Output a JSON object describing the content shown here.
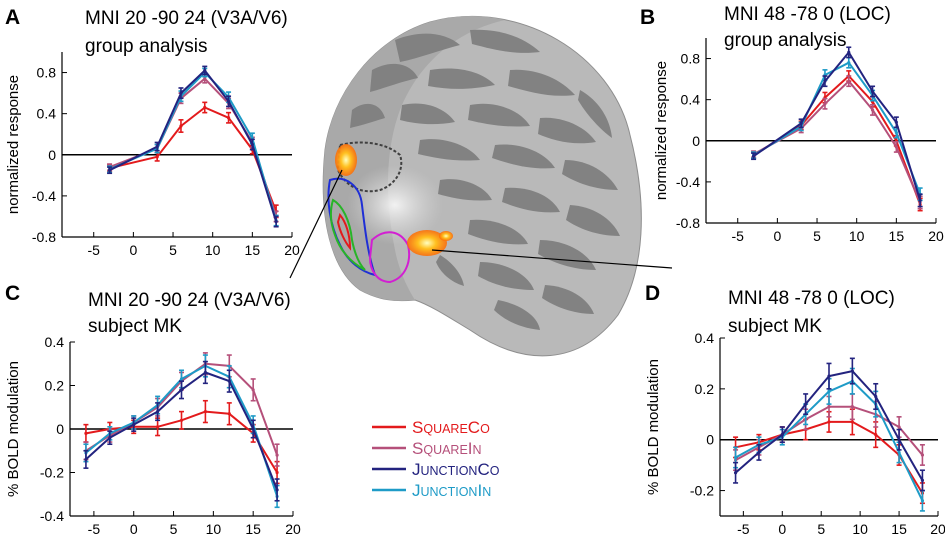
{
  "colors": {
    "SquareCo": "#e31a1c",
    "SquareIn": "#b5507a",
    "JunctionCo": "#23237f",
    "JunctionIn": "#1e9bc7",
    "axis": "#000000"
  },
  "legend": [
    {
      "key": "SquareCo",
      "big1": "S",
      "small1": "QUARE",
      "big2": "C",
      "small2": "O"
    },
    {
      "key": "SquareIn",
      "big1": "S",
      "small1": "QUARE",
      "big2": "I",
      "small2": "N"
    },
    {
      "key": "JunctionCo",
      "big1": "J",
      "small1": "UNCTION",
      "big2": "C",
      "small2": "O"
    },
    {
      "key": "JunctionIn",
      "big1": "J",
      "small1": "UNCTION",
      "big2": "I",
      "small2": "N"
    }
  ],
  "brain": {
    "icon": "inflated-brain-surface"
  },
  "chart_data": [
    {
      "panel": "A",
      "type": "line",
      "title": "MNI 20 -90 24 (V3A/V6)",
      "subtitle": "group analysis",
      "ylabel": "normalized response",
      "xlim": [
        -9,
        20
      ],
      "ylim": [
        -0.8,
        1.0
      ],
      "xticks": [
        -5,
        0,
        5,
        10,
        15,
        20
      ],
      "xtick_labels": [
        "-5",
        "0",
        "5",
        "10",
        "15",
        "20"
      ],
      "yticks": [
        -0.8,
        -0.4,
        0,
        0.4,
        0.8
      ],
      "ytick_labels": [
        "-0.8",
        "-0.4",
        "0",
        "0.4",
        "0.8"
      ],
      "x": [
        -3,
        3,
        6,
        9,
        12,
        15,
        18
      ],
      "series": [
        {
          "name": "SquareCo",
          "values": [
            -0.13,
            -0.02,
            0.28,
            0.46,
            0.36,
            0.05,
            -0.55
          ],
          "err": [
            0.03,
            0.04,
            0.06,
            0.05,
            0.05,
            0.04,
            0.06
          ]
        },
        {
          "name": "SquareIn",
          "values": [
            -0.12,
            0.06,
            0.55,
            0.74,
            0.5,
            0.12,
            -0.6
          ],
          "err": [
            0.03,
            0.04,
            0.05,
            0.04,
            0.05,
            0.05,
            0.05
          ]
        },
        {
          "name": "JunctionCo",
          "values": [
            -0.15,
            0.08,
            0.6,
            0.82,
            0.52,
            0.1,
            -0.65
          ],
          "err": [
            0.03,
            0.04,
            0.05,
            0.04,
            0.05,
            0.05,
            0.05
          ]
        },
        {
          "name": "JunctionIn",
          "values": [
            -0.14,
            0.06,
            0.57,
            0.8,
            0.56,
            0.16,
            -0.64
          ],
          "err": [
            0.03,
            0.04,
            0.05,
            0.04,
            0.05,
            0.05,
            0.05
          ]
        }
      ]
    },
    {
      "panel": "B",
      "type": "line",
      "title": "MNI 48 -78 0 (LOC)",
      "subtitle": "group analysis",
      "ylabel": "normalized response",
      "xlim": [
        -9,
        20
      ],
      "ylim": [
        -0.8,
        1.0
      ],
      "xticks": [
        -5,
        0,
        5,
        10,
        15,
        20
      ],
      "xtick_labels": [
        "-5",
        "0",
        "5",
        "10",
        "15",
        "20"
      ],
      "yticks": [
        -0.8,
        -0.4,
        0,
        0.4,
        0.8
      ],
      "ytick_labels": [
        "-0.8",
        "-0.4",
        "0",
        "0.4",
        "0.8"
      ],
      "x": [
        -3,
        3,
        6,
        9,
        12,
        15,
        18
      ],
      "series": [
        {
          "name": "SquareCo",
          "values": [
            -0.14,
            0.15,
            0.42,
            0.63,
            0.38,
            0.0,
            -0.62
          ],
          "err": [
            0.03,
            0.04,
            0.05,
            0.05,
            0.05,
            0.05,
            0.06
          ]
        },
        {
          "name": "SquareIn",
          "values": [
            -0.13,
            0.12,
            0.36,
            0.58,
            0.3,
            -0.06,
            -0.6
          ],
          "err": [
            0.03,
            0.04,
            0.05,
            0.05,
            0.05,
            0.05,
            0.06
          ]
        },
        {
          "name": "JunctionCo",
          "values": [
            -0.15,
            0.17,
            0.58,
            0.86,
            0.48,
            0.18,
            -0.58
          ],
          "err": [
            0.03,
            0.04,
            0.05,
            0.05,
            0.05,
            0.05,
            0.06
          ]
        },
        {
          "name": "JunctionIn",
          "values": [
            -0.14,
            0.14,
            0.64,
            0.76,
            0.44,
            0.08,
            -0.52
          ],
          "err": [
            0.03,
            0.04,
            0.05,
            0.05,
            0.05,
            0.05,
            0.06
          ]
        }
      ]
    },
    {
      "panel": "C",
      "type": "line",
      "title": "MNI 20 -90 24 (V3A/V6)",
      "subtitle": "subject MK",
      "ylabel": "% BOLD modulation",
      "xlim": [
        -8,
        20
      ],
      "ylim": [
        -0.4,
        0.4
      ],
      "xticks": [
        -5,
        0,
        5,
        10,
        15,
        20
      ],
      "xtick_labels": [
        "-5",
        "0",
        "5",
        "10",
        "15",
        "20"
      ],
      "yticks": [
        -0.4,
        -0.2,
        0,
        0.2,
        0.4
      ],
      "ytick_labels": [
        "-0.4",
        "-0.2",
        "0",
        "0.2",
        "0.4"
      ],
      "x": [
        -6,
        -3,
        0,
        3,
        6,
        9,
        12,
        15,
        18
      ],
      "series": [
        {
          "name": "SquareCo",
          "values": [
            -0.02,
            0.0,
            0.01,
            0.01,
            0.04,
            0.08,
            0.07,
            -0.02,
            -0.2
          ],
          "err": [
            0.04,
            0.03,
            0.03,
            0.04,
            0.04,
            0.05,
            0.05,
            0.04,
            0.05
          ]
        },
        {
          "name": "SquareIn",
          "values": [
            -0.1,
            -0.03,
            0.03,
            0.1,
            0.22,
            0.3,
            0.29,
            0.18,
            -0.12
          ],
          "err": [
            0.04,
            0.03,
            0.03,
            0.04,
            0.04,
            0.05,
            0.05,
            0.05,
            0.05
          ]
        },
        {
          "name": "JunctionCo",
          "values": [
            -0.14,
            -0.04,
            0.02,
            0.08,
            0.18,
            0.26,
            0.22,
            0.0,
            -0.28
          ],
          "err": [
            0.04,
            0.03,
            0.03,
            0.04,
            0.04,
            0.05,
            0.05,
            0.04,
            0.05
          ]
        },
        {
          "name": "JunctionIn",
          "values": [
            -0.11,
            -0.02,
            0.03,
            0.11,
            0.23,
            0.29,
            0.24,
            0.02,
            -0.31
          ],
          "err": [
            0.04,
            0.03,
            0.03,
            0.04,
            0.04,
            0.05,
            0.05,
            0.04,
            0.05
          ]
        }
      ]
    },
    {
      "panel": "D",
      "type": "line",
      "title": "MNI 48 -78 0 (LOC)",
      "subtitle": "subject MK",
      "ylabel": "% BOLD modulation",
      "xlim": [
        -8,
        20
      ],
      "ylim": [
        -0.3,
        0.4
      ],
      "xticks": [
        -5,
        0,
        5,
        10,
        15,
        20
      ],
      "xtick_labels": [
        "-5",
        "0",
        "5",
        "10",
        "15",
        "20"
      ],
      "yticks": [
        -0.2,
        0,
        0.2,
        0.4
      ],
      "ytick_labels": [
        "-0.2",
        "0",
        "0.2",
        "0.4"
      ],
      "x": [
        -6,
        -3,
        0,
        3,
        6,
        9,
        12,
        15,
        18
      ],
      "series": [
        {
          "name": "SquareCo",
          "values": [
            -0.03,
            -0.01,
            0.02,
            0.04,
            0.07,
            0.07,
            0.02,
            -0.06,
            -0.21
          ],
          "err": [
            0.04,
            0.03,
            0.03,
            0.04,
            0.04,
            0.05,
            0.05,
            0.04,
            0.04
          ]
        },
        {
          "name": "SquareIn",
          "values": [
            -0.08,
            -0.03,
            0.02,
            0.08,
            0.13,
            0.13,
            0.1,
            0.05,
            -0.06
          ],
          "err": [
            0.04,
            0.03,
            0.03,
            0.04,
            0.04,
            0.05,
            0.05,
            0.04,
            0.04
          ]
        },
        {
          "name": "JunctionCo",
          "values": [
            -0.13,
            -0.05,
            0.02,
            0.14,
            0.25,
            0.27,
            0.17,
            0.0,
            -0.16
          ],
          "err": [
            0.04,
            0.03,
            0.03,
            0.04,
            0.05,
            0.05,
            0.05,
            0.04,
            0.04
          ]
        },
        {
          "name": "JunctionIn",
          "values": [
            -0.07,
            -0.02,
            0.01,
            0.1,
            0.19,
            0.23,
            0.14,
            -0.05,
            -0.24
          ],
          "err": [
            0.04,
            0.03,
            0.03,
            0.04,
            0.05,
            0.05,
            0.05,
            0.04,
            0.04
          ]
        }
      ]
    }
  ]
}
